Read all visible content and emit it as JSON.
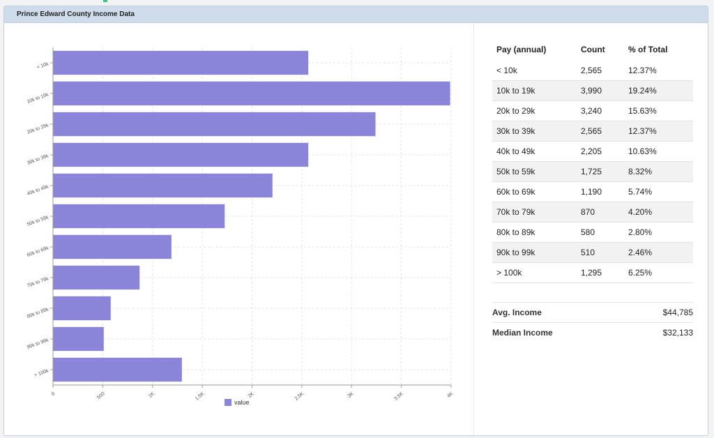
{
  "panel": {
    "title": "Prince Edward County Income Data"
  },
  "table": {
    "headers": [
      "Pay (annual)",
      "Count",
      "% of Total"
    ],
    "rows": [
      [
        "< 10k",
        "2,565",
        "12.37%"
      ],
      [
        "10k to 19k",
        "3,990",
        "19.24%"
      ],
      [
        "20k to 29k",
        "3,240",
        "15.63%"
      ],
      [
        "30k to 39k",
        "2,565",
        "12.37%"
      ],
      [
        "40k to 49k",
        "2,205",
        "10.63%"
      ],
      [
        "50k to 59k",
        "1,725",
        "8.32%"
      ],
      [
        "60k to 69k",
        "1,190",
        "5.74%"
      ],
      [
        "70k to 79k",
        "870",
        "4.20%"
      ],
      [
        "80k to 89k",
        "580",
        "2.80%"
      ],
      [
        "90k to 99k",
        "510",
        "2.46%"
      ],
      [
        "> 100k",
        "1,295",
        "6.25%"
      ]
    ]
  },
  "summary": {
    "avg_label": "Avg. Income",
    "avg_value": "$44,785",
    "median_label": "Median Income",
    "median_value": "$32,133"
  },
  "colors": {
    "bar": "#8a85d8",
    "grid": "#e3e3e3",
    "axis": "#999999"
  },
  "chart_data": {
    "type": "bar",
    "orientation": "horizontal",
    "categories": [
      "< 10k",
      "10k to 19k",
      "20k to 29k",
      "30k to 39k",
      "40k to 49k",
      "50k to 59k",
      "60k to 69k",
      "70k to 79k",
      "80k to 89k",
      "90k to 99k",
      "> 100k"
    ],
    "series": [
      {
        "name": "value",
        "values": [
          2565,
          3990,
          3240,
          2565,
          2205,
          1725,
          1190,
          870,
          580,
          510,
          1295
        ]
      }
    ],
    "xticks": [
      0,
      500,
      1000,
      1500,
      2000,
      2500,
      3000,
      3500,
      4000
    ],
    "xtick_labels": [
      "0",
      "500",
      "1K",
      "1.5K",
      "2K",
      "2.5K",
      "3K",
      "3.5K",
      "4K"
    ],
    "xlim": [
      0,
      4000
    ],
    "grid": true,
    "legend": "bottom-center"
  }
}
